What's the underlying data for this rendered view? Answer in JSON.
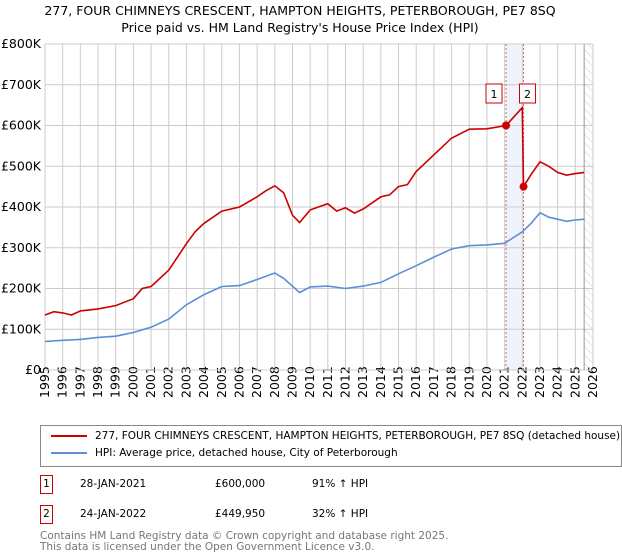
{
  "chart_data": {
    "type": "line",
    "title": "277, FOUR CHIMNEYS CRESCENT, HAMPTON HEIGHTS, PETERBOROUGH, PE7 8SQ",
    "subtitle": "Price paid vs. HM Land Registry's House Price Index (HPI)",
    "xlim": [
      1995,
      2026
    ],
    "ylim": [
      0,
      800000
    ],
    "x_ticks": [
      "1995",
      "1996",
      "1997",
      "1998",
      "1999",
      "2000",
      "2001",
      "2002",
      "2003",
      "2004",
      "2005",
      "2006",
      "2007",
      "2008",
      "2009",
      "2010",
      "2011",
      "2012",
      "2013",
      "2014",
      "2015",
      "2016",
      "2017",
      "2018",
      "2019",
      "2020",
      "2021",
      "2022",
      "2023",
      "2024",
      "2025",
      "2026"
    ],
    "y_ticks": [
      {
        "v": 0,
        "label": "£0"
      },
      {
        "v": 100000,
        "label": "£100K"
      },
      {
        "v": 200000,
        "label": "£200K"
      },
      {
        "v": 300000,
        "label": "£300K"
      },
      {
        "v": 400000,
        "label": "£400K"
      },
      {
        "v": 500000,
        "label": "£500K"
      },
      {
        "v": 600000,
        "label": "£600K"
      },
      {
        "v": 700000,
        "label": "£700K"
      },
      {
        "v": 800000,
        "label": "£800K"
      }
    ],
    "grid": true,
    "highlight": [
      2021.08,
      2022.07
    ],
    "hatch_from": 2025.5,
    "series": [
      {
        "name": "277, FOUR CHIMNEYS CRESCENT, HAMPTON HEIGHTS, PETERBOROUGH, PE7 8SQ (detached house)",
        "color": "#cc0000",
        "x": [
          1995,
          1995.5,
          1996,
          1996.5,
          1997,
          1998,
          1999,
          2000,
          2000.5,
          2001,
          2002,
          2003,
          2003.5,
          2004,
          2005,
          2006,
          2007,
          2007.5,
          2008,
          2008.5,
          2009,
          2009.4,
          2010,
          2011,
          2011.5,
          2012,
          2012.5,
          2013,
          2014,
          2014.5,
          2015,
          2015.5,
          2016,
          2017,
          2018,
          2019,
          2020,
          2021.08,
          2021.5,
          2022,
          2022.07,
          2022.5,
          2023,
          2023.5,
          2024,
          2024.5,
          2025,
          2025.5
        ],
        "y": [
          135000,
          143000,
          140000,
          135000,
          145000,
          150000,
          158000,
          175000,
          200000,
          205000,
          245000,
          310000,
          340000,
          360000,
          390000,
          400000,
          425000,
          440000,
          452000,
          435000,
          380000,
          362000,
          393000,
          408000,
          390000,
          398000,
          385000,
          395000,
          425000,
          430000,
          450000,
          455000,
          487000,
          528000,
          569000,
          591000,
          592000,
          600000,
          620000,
          644000,
          449950,
          480000,
          511000,
          500000,
          485000,
          478000,
          482000,
          485000
        ]
      },
      {
        "name": "HPI: Average price, detached house, City of Peterborough",
        "color": "#5b8fd6",
        "x": [
          1995,
          1996,
          1997,
          1998,
          1999,
          2000,
          2001,
          2002,
          2003,
          2004,
          2005,
          2006,
          2007,
          2008,
          2008.5,
          2009.4,
          2010,
          2011,
          2012,
          2013,
          2014,
          2015,
          2016,
          2017,
          2018,
          2019,
          2020,
          2021,
          2022,
          2022.5,
          2023,
          2023.5,
          2024,
          2024.5,
          2025,
          2025.5
        ],
        "y": [
          70000,
          73000,
          75000,
          80000,
          83000,
          92000,
          105000,
          125000,
          160000,
          185000,
          205000,
          207000,
          222000,
          238000,
          225000,
          190000,
          204000,
          206000,
          200000,
          206000,
          215000,
          236000,
          256000,
          277000,
          297000,
          305000,
          307000,
          311000,
          339000,
          360000,
          386000,
          375000,
          370000,
          365000,
          368000,
          370000
        ]
      }
    ],
    "sales": [
      {
        "id": "1",
        "x": 2021.08,
        "y": 600000
      },
      {
        "id": "2",
        "x": 2022.07,
        "y": 449950
      }
    ]
  },
  "legend": {
    "property": "277, FOUR CHIMNEYS CRESCENT, HAMPTON HEIGHTS, PETERBOROUGH, PE7 8SQ (detached house)",
    "hpi": "HPI: Average price, detached house, City of Peterborough"
  },
  "transactions": [
    {
      "id": "1",
      "date": "28-JAN-2021",
      "price": "£600,000",
      "hpi": "91% ↑ HPI"
    },
    {
      "id": "2",
      "date": "24-JAN-2022",
      "price": "£449,950",
      "hpi": "32% ↑ HPI"
    }
  ],
  "footer": {
    "line1": "Contains HM Land Registry data © Crown copyright and database right 2025.",
    "line2": "This data is licensed under the Open Government Licence v3.0."
  }
}
